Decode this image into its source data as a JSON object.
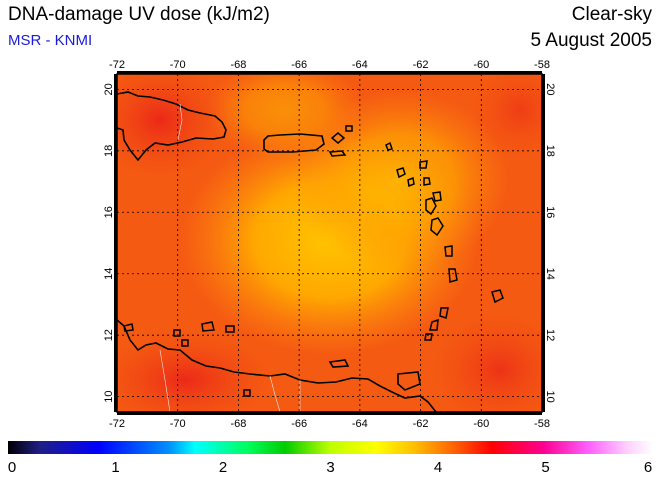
{
  "title": "DNA-damage UV dose (kJ/m2)",
  "subtitle": "MSR - KNMI",
  "sky_condition": "Clear-sky",
  "date": "5 August 2005",
  "map": {
    "lon_range": [
      -72,
      -58
    ],
    "lat_range": [
      9.5,
      20.5
    ],
    "lon_ticks": [
      "-72",
      "-70",
      "-68",
      "-66",
      "-64",
      "-62",
      "-60",
      "-58"
    ],
    "lat_ticks": [
      "10",
      "12",
      "14",
      "16",
      "18",
      "20"
    ],
    "gridlines": true
  },
  "colorbar": {
    "labels": [
      "0",
      "1",
      "2",
      "3",
      "4",
      "5",
      "6"
    ],
    "min": 0,
    "max": 6
  },
  "colors": {
    "subtitle": "#1a1adc",
    "field_low": "#ffb300",
    "field_high": "#f03a10"
  }
}
